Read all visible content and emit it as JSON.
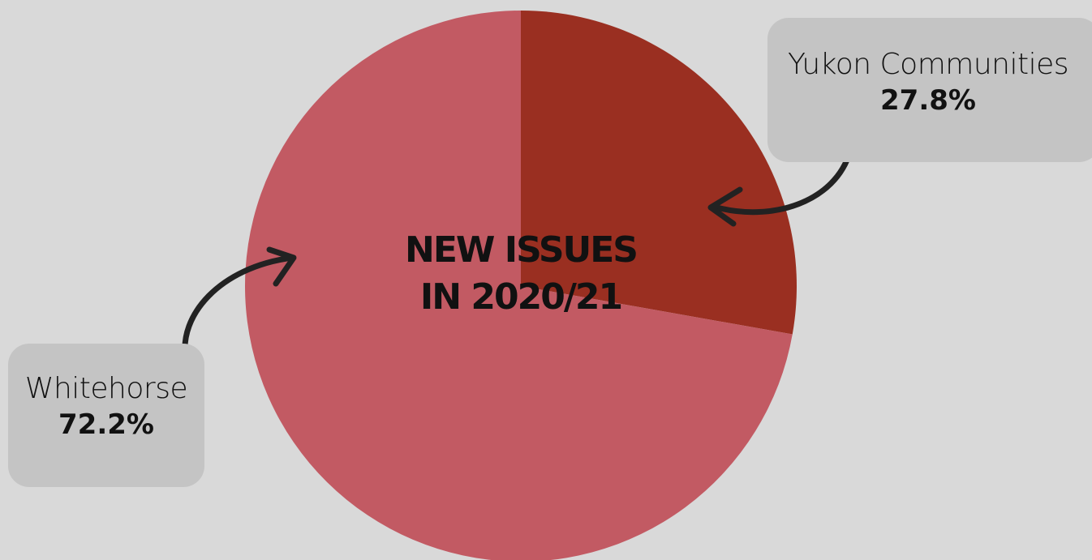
{
  "chart_data": {
    "type": "pie",
    "title": "NEW ISSUES\nIN 2020/21",
    "title_lines": [
      "NEW ISSUES",
      "IN 2020/21"
    ],
    "slices": [
      {
        "label": "Yukon Communities",
        "value": 27.8,
        "display": "27.8%",
        "color": "#9a2f21"
      },
      {
        "label": "Whitehorse",
        "value": 72.2,
        "display": "72.2%",
        "color": "#c25a63"
      }
    ],
    "start_angle": "12 o'clock",
    "direction": "clockwise",
    "legend": "callouts with arrows"
  },
  "colors": {
    "background": "#d9d9d9",
    "callout_background": "#c4c4c4",
    "arrow": "#222222",
    "text": "#111111"
  }
}
